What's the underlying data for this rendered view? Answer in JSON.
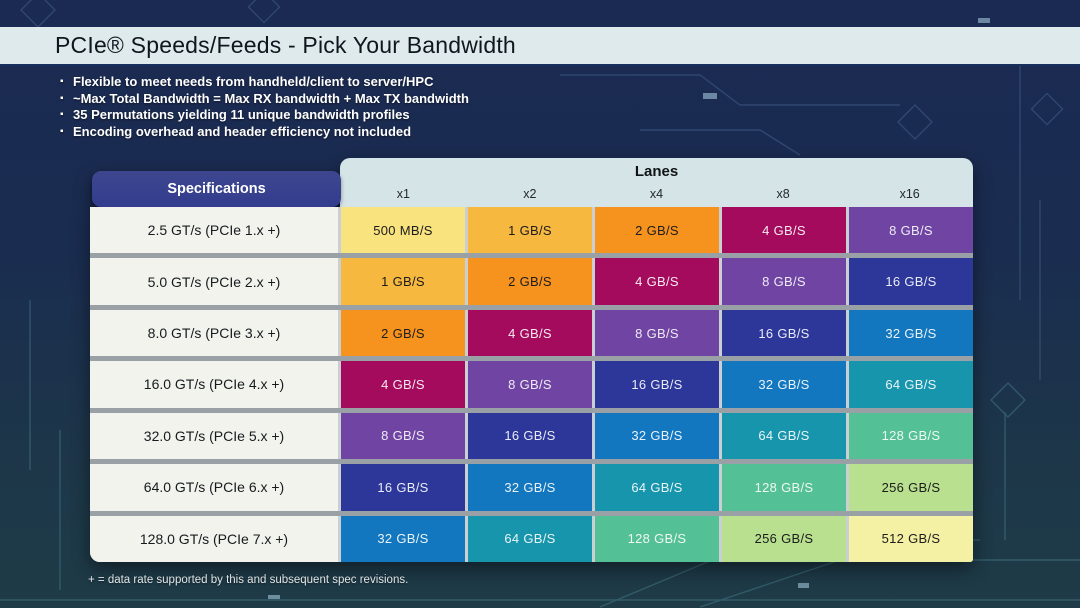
{
  "slide": {
    "title": "PCIe® Speeds/Feeds - Pick Your Bandwidth",
    "bullets": [
      "Flexible to meet needs from handheld/client to server/HPC",
      "~Max Total Bandwidth = Max RX bandwidth + Max TX bandwidth",
      "35 Permutations yielding 11 unique bandwidth profiles",
      "Encoding overhead and header efficiency not included"
    ],
    "footnote": "+ = data rate supported by this and subsequent spec revisions."
  },
  "table": {
    "spec_header": "Specifications",
    "lanes_header": "Lanes",
    "lane_columns": [
      "x1",
      "x2",
      "x4",
      "x8",
      "x16"
    ],
    "rows": [
      {
        "spec": "2.5 GT/s (PCIe 1.x +)",
        "cells": [
          "500 MB/S",
          "1 GB/S",
          "2 GB/S",
          "4 GB/S",
          "8 GB/S"
        ]
      },
      {
        "spec": "5.0 GT/s (PCIe 2.x +)",
        "cells": [
          "1 GB/S",
          "2 GB/S",
          "4 GB/S",
          "8 GB/S",
          "16 GB/S"
        ]
      },
      {
        "spec": "8.0 GT/s (PCIe 3.x +)",
        "cells": [
          "2 GB/S",
          "4 GB/S",
          "8 GB/S",
          "16 GB/S",
          "32 GB/S"
        ]
      },
      {
        "spec": "16.0 GT/s (PCIe 4.x +)",
        "cells": [
          "4 GB/S",
          "8 GB/S",
          "16 GB/S",
          "32 GB/S",
          "64 GB/S"
        ]
      },
      {
        "spec": "32.0 GT/s (PCIe 5.x +)",
        "cells": [
          "8 GB/S",
          "16 GB/S",
          "32 GB/S",
          "64 GB/S",
          "128 GB/S"
        ]
      },
      {
        "spec": "64.0 GT/s (PCIe 6.x +)",
        "cells": [
          "16 GB/S",
          "32 GB/S",
          "64 GB/S",
          "128 GB/S",
          "256 GB/S"
        ]
      },
      {
        "spec": "128.0 GT/s (PCIe 7.x +)",
        "cells": [
          "32 GB/S",
          "64 GB/S",
          "128 GB/S",
          "256 GB/S",
          "512 GB/S"
        ]
      }
    ],
    "value_colors": {
      "500 MB/S": {
        "bg": "#F9E37F",
        "fg": "#1C1C1C"
      },
      "1 GB/S": {
        "bg": "#F7B840",
        "fg": "#1C1C1C"
      },
      "2 GB/S": {
        "bg": "#F6921E",
        "fg": "#1C1C1C"
      },
      "4 GB/S": {
        "bg": "#A40B5D",
        "fg": "#F6E8F0"
      },
      "8 GB/S": {
        "bg": "#6F44A3",
        "fg": "#EFEAF6"
      },
      "16 GB/S": {
        "bg": "#2C3799",
        "fg": "#E9EBF6"
      },
      "32 GB/S": {
        "bg": "#1277BE",
        "fg": "#EAF2F9"
      },
      "64 GB/S": {
        "bg": "#1795AC",
        "fg": "#EAF4F6"
      },
      "128 GB/S": {
        "bg": "#53C195",
        "fg": "#EFF8F3"
      },
      "256 GB/S": {
        "bg": "#B9E08F",
        "fg": "#1C1C1C"
      },
      "512 GB/S": {
        "bg": "#F5F1A4",
        "fg": "#1C1C1C"
      }
    }
  },
  "colors": {
    "background_top": "#1B2A52",
    "background_bottom": "#1E3B47",
    "title_band": "#DEEAEC",
    "lanes_panel": "#D5E4E7",
    "spec_header_box": "#353E91",
    "spec_cell": "#F1F3EC",
    "row_gap": "#99A1A6",
    "column_gap": "#C9CFD2"
  }
}
